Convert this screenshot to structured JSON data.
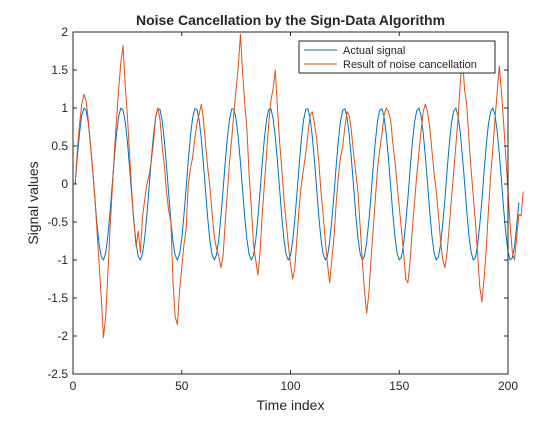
{
  "chart_data": {
    "type": "line",
    "title": "Noise Cancellation by the Sign-Data Algorithm",
    "xlabel": "Time index",
    "ylabel": "Signal values",
    "xlim": [
      0,
      200
    ],
    "ylim": [
      -2.5,
      2
    ],
    "xticks": [
      0,
      50,
      100,
      150,
      200
    ],
    "yticks": [
      -2.5,
      -2,
      -1.5,
      -1,
      -0.5,
      0,
      0.5,
      1,
      1.5,
      2
    ],
    "xtick_labels": [
      "0",
      "50",
      "100",
      "150",
      "200"
    ],
    "ytick_labels": [
      "-2.5",
      "-2",
      "-1.5",
      "-1",
      "-0.5",
      "0",
      "0.5",
      "1",
      "1.5",
      "2"
    ],
    "grid": false,
    "legend_position": "top-right",
    "series": [
      {
        "name": "Actual signal",
        "color": "#0072BD",
        "x_start": 1,
        "x_step": 1,
        "y": [
          0.0,
          0.36,
          0.67,
          0.9,
          1.0,
          0.97,
          0.81,
          0.54,
          0.2,
          -0.17,
          -0.52,
          -0.79,
          -0.96,
          -1.0,
          -0.91,
          -0.69,
          -0.38,
          -0.02,
          0.34,
          0.66,
          0.89,
          1.0,
          0.97,
          0.82,
          0.56,
          0.22,
          -0.15,
          -0.5,
          -0.78,
          -0.95,
          -1.0,
          -0.91,
          -0.7,
          -0.4,
          -0.04,
          0.33,
          0.64,
          0.88,
          0.99,
          0.98,
          0.83,
          0.57,
          0.24,
          -0.13,
          -0.48,
          -0.77,
          -0.94,
          -1.0,
          -0.92,
          -0.72,
          -0.41,
          -0.06,
          0.31,
          0.63,
          0.87,
          0.99,
          0.98,
          0.84,
          0.59,
          0.26,
          -0.11,
          -0.47,
          -0.76,
          -0.94,
          -1.0,
          -0.93,
          -0.73,
          -0.43,
          -0.08,
          0.29,
          0.62,
          0.86,
          0.99,
          0.98,
          0.85,
          0.6,
          0.28,
          -0.09,
          -0.45,
          -0.74,
          -0.93,
          -1.0,
          -0.94,
          -0.74,
          -0.45,
          -0.1,
          0.27,
          0.6,
          0.85,
          0.98,
          0.99,
          0.86,
          0.62,
          0.3,
          -0.07,
          -0.43,
          -0.73,
          -0.93,
          -1.0,
          -0.94,
          -0.75,
          -0.46,
          -0.12,
          0.26,
          0.59,
          0.84,
          0.98,
          0.99,
          0.87,
          0.63,
          0.31,
          -0.05,
          -0.42,
          -0.72,
          -0.92,
          -1.0,
          -0.95,
          -0.76,
          -0.48,
          -0.14,
          0.24,
          0.57,
          0.83,
          0.97,
          0.99,
          0.88,
          0.64,
          0.33,
          -0.03,
          -0.4,
          -0.71,
          -0.91,
          -1.0,
          -0.95,
          -0.77,
          -0.49,
          -0.16,
          0.22,
          0.56,
          0.82,
          0.97,
          0.99,
          0.89,
          0.66,
          0.35,
          -0.01,
          -0.38,
          -0.69,
          -0.91,
          -1.0,
          -0.96,
          -0.79,
          -0.51,
          -0.18,
          0.2,
          0.54,
          0.81,
          0.96,
          1.0,
          0.9,
          0.67,
          0.37,
          0.01,
          -0.36,
          -0.68,
          -0.9,
          -1.0,
          -0.96,
          -0.8,
          -0.52,
          -0.2,
          0.18,
          0.52,
          0.8,
          0.96,
          1.0,
          0.9,
          0.69,
          0.38,
          0.03,
          -0.34,
          -0.67,
          -0.89,
          -1.0,
          -0.97,
          -0.81,
          -0.54,
          -0.22,
          0.16,
          0.51,
          0.79,
          0.95,
          1.0,
          0.91,
          0.7,
          0.4,
          0.05,
          -0.33,
          -0.65,
          -0.89,
          -1.0,
          -0.97,
          -0.82,
          -0.55,
          -0.24
        ]
      },
      {
        "name": "Result of noise cancellation",
        "color": "#D95319",
        "x_start": 1,
        "x_step": 1,
        "y": [
          0.0,
          0.45,
          0.78,
          1.05,
          1.18,
          1.1,
          0.85,
          0.52,
          0.2,
          -0.15,
          -0.6,
          -1.05,
          -1.5,
          -2.02,
          -1.75,
          -1.2,
          -0.6,
          -0.1,
          0.4,
          0.85,
          1.25,
          1.6,
          1.82,
          1.3,
          0.9,
          0.4,
          -0.1,
          -0.5,
          -0.82,
          -0.62,
          -0.9,
          -0.42,
          -0.2,
          0.0,
          0.12,
          0.3,
          0.55,
          0.88,
          1.0,
          0.85,
          0.5,
          0.25,
          -0.1,
          -0.35,
          -0.5,
          -1.3,
          -1.75,
          -1.85,
          -1.4,
          -1.1,
          -0.8,
          -0.6,
          0.0,
          0.2,
          0.35,
          0.6,
          0.8,
          0.92,
          1.05,
          0.85,
          0.5,
          0.2,
          -0.05,
          -0.4,
          -0.7,
          -0.85,
          -0.95,
          -1.1,
          -0.95,
          -0.5,
          -0.1,
          0.3,
          0.6,
          0.95,
          1.25,
          1.55,
          1.97,
          1.45,
          1.05,
          0.7,
          0.1,
          -0.3,
          -0.8,
          -1.0,
          -1.2,
          -0.9,
          -0.4,
          0.0,
          0.4,
          0.8,
          1.1,
          1.25,
          1.5,
          1.0,
          0.55,
          0.2,
          -0.2,
          -0.5,
          -0.8,
          -1.05,
          -1.25,
          -1.1,
          -0.7,
          -0.3,
          0.0,
          0.2,
          0.4,
          0.65,
          0.9,
          0.95,
          0.8,
          0.6,
          0.3,
          -0.1,
          -0.4,
          -0.75,
          -1.05,
          -1.3,
          -1.0,
          -0.7,
          -0.25,
          0.1,
          0.35,
          0.5,
          0.75,
          0.95,
          0.9,
          0.7,
          0.4,
          0.15,
          -0.1,
          -0.55,
          -1.0,
          -1.4,
          -1.7,
          -1.45,
          -1.0,
          -0.6,
          -0.2,
          0.2,
          0.45,
          0.65,
          0.9,
          1.0,
          0.95,
          0.85,
          0.55,
          0.3,
          0.0,
          -0.3,
          -0.6,
          -0.9,
          -1.25,
          -1.3,
          -1.0,
          -0.6,
          -0.25,
          0.1,
          0.4,
          0.7,
          0.95,
          1.05,
          0.95,
          0.75,
          0.45,
          0.15,
          -0.1,
          -0.4,
          -0.75,
          -1.0,
          -1.1,
          -0.9,
          -0.55,
          -0.2,
          0.15,
          0.5,
          0.85,
          1.3,
          1.7,
          1.25,
          1.05,
          0.6,
          0.2,
          -0.15,
          -0.5,
          -0.9,
          -1.35,
          -1.55,
          -1.25,
          -0.85,
          -0.35,
          0.1,
          0.45,
          0.85,
          1.2,
          1.55,
          1.2,
          0.8,
          0.35,
          -0.1,
          -0.55,
          -0.9,
          -1.0,
          -0.7,
          -0.4,
          -0.42,
          -0.1
        ]
      }
    ]
  }
}
